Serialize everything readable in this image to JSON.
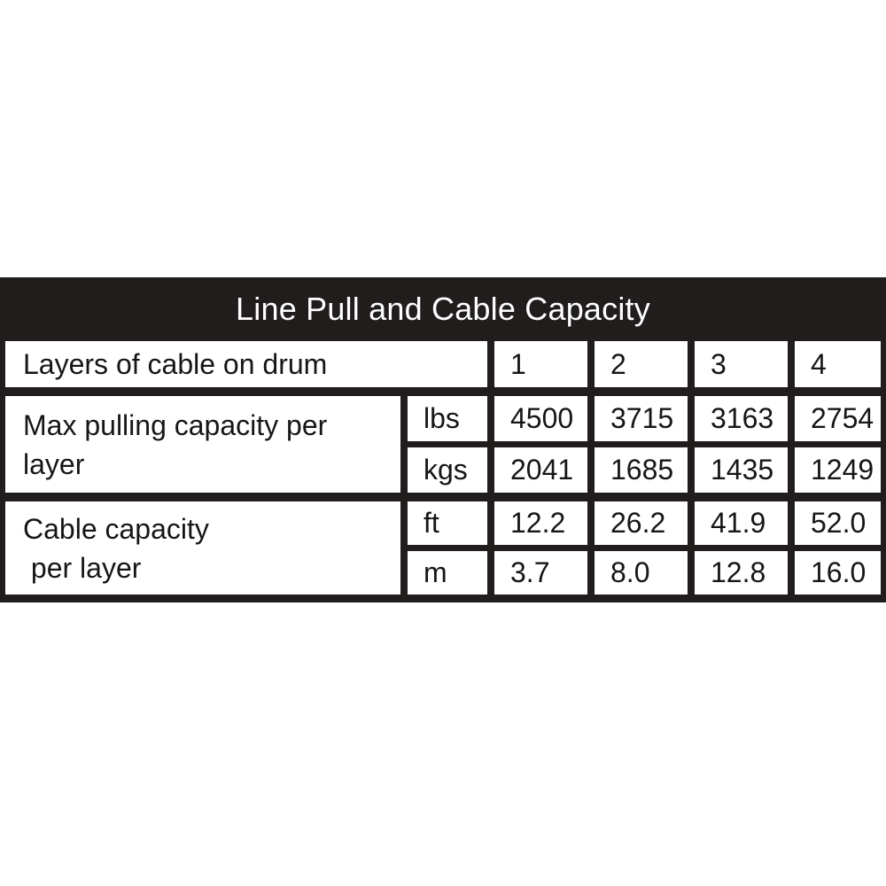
{
  "table": {
    "title": "Line Pull and Cable Capacity",
    "layers_row": {
      "label": "Layers of cable on drum",
      "values": [
        "1",
        "2",
        "3",
        "4"
      ]
    },
    "max_pull": {
      "label": "Max pulling capacity per\nlayer",
      "rows": [
        {
          "unit": "lbs",
          "values": [
            "4500",
            "3715",
            "3163",
            "2754"
          ]
        },
        {
          "unit": "kgs",
          "values": [
            "2041",
            "1685",
            "1435",
            "1249"
          ]
        }
      ]
    },
    "cable_capacity": {
      "label": "Cable capacity\n per layer",
      "rows": [
        {
          "unit": "ft",
          "values": [
            "12.2",
            "26.2",
            "41.9",
            "52.0"
          ]
        },
        {
          "unit": "m",
          "values": [
            "3.7",
            "8.0",
            "12.8",
            "16.0"
          ]
        }
      ]
    }
  },
  "chart_data": {
    "type": "table",
    "title": "Line Pull and Cable Capacity",
    "columns": [
      "Layers of cable on drum",
      "1",
      "2",
      "3",
      "4"
    ],
    "rows": [
      {
        "label": "Max pulling capacity per layer",
        "unit": "lbs",
        "values": [
          4500,
          3715,
          3163,
          2754
        ]
      },
      {
        "label": "Max pulling capacity per layer",
        "unit": "kgs",
        "values": [
          2041,
          1685,
          1435,
          1249
        ]
      },
      {
        "label": "Cable capacity per layer",
        "unit": "ft",
        "values": [
          12.2,
          26.2,
          41.9,
          52.0
        ]
      },
      {
        "label": "Cable capacity per layer",
        "unit": "m",
        "values": [
          3.7,
          8.0,
          12.8,
          16.0
        ]
      }
    ],
    "colors": {
      "header_background": "#211d1d",
      "header_text": "#ffffff",
      "cell_background": "#ffffff",
      "cell_text": "#161616"
    }
  }
}
